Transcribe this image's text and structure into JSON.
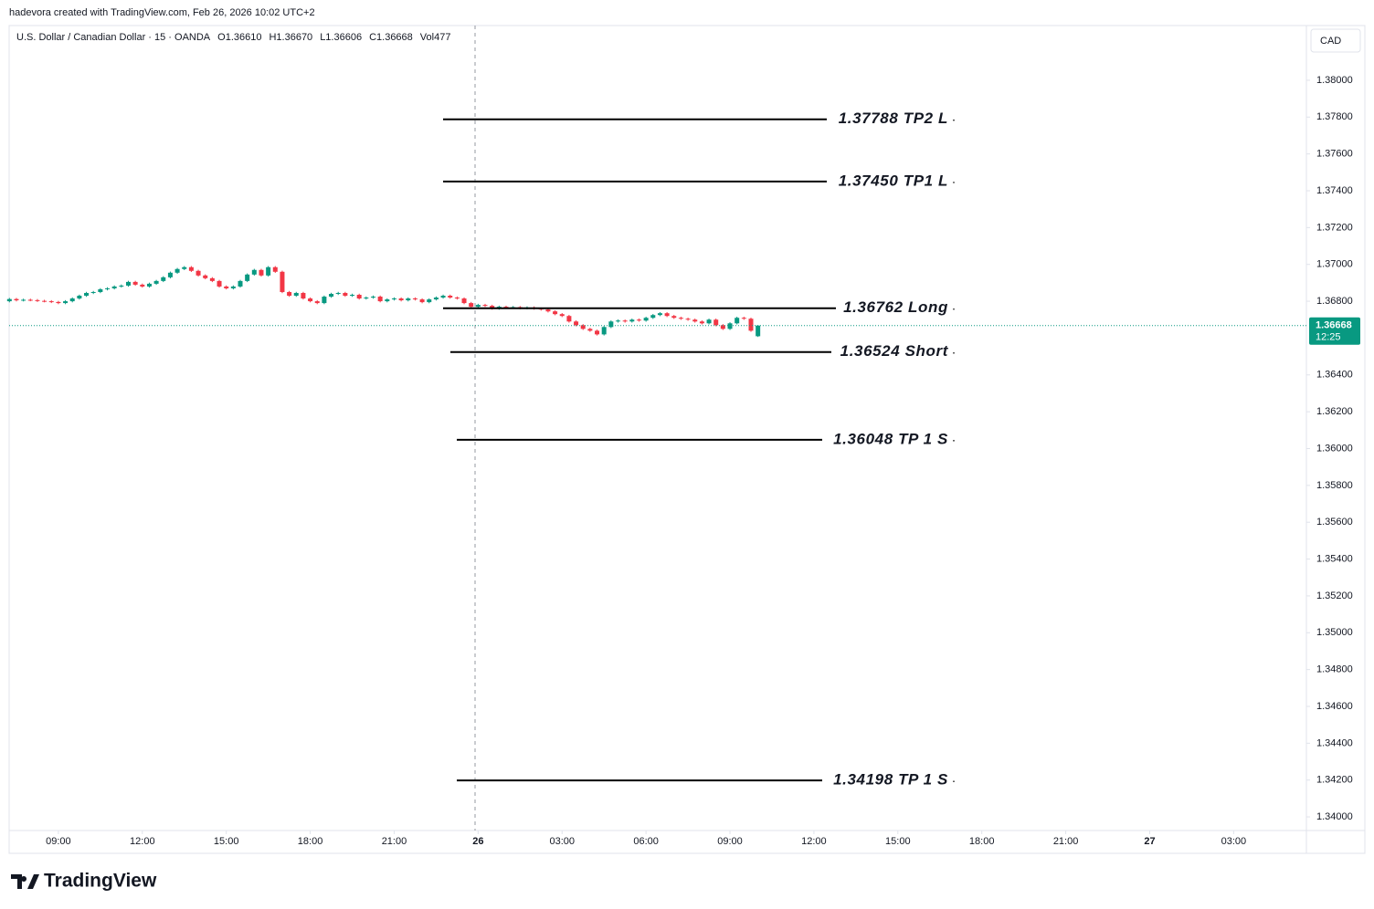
{
  "attribution": "hadevora created with TradingView.com, Feb 26, 2026 10:02 UTC+2",
  "logo": "TradingView",
  "chart_data": {
    "type": "candlestick",
    "title": "U.S. Dollar / Canadian Dollar · 15 · OANDA",
    "legend_values": [
      "O1.36610",
      "H1.36670",
      "L1.36606",
      "C1.36668",
      "Vol477"
    ],
    "currency": "CAD",
    "price_label": "1.36668",
    "countdown": "12:25",
    "up_color": "#089981",
    "down_color": "#f23645",
    "x": [
      7.25,
      7.5,
      7.75,
      8,
      8.25,
      8.5,
      8.75,
      9,
      9.25,
      9.5,
      9.75,
      10,
      10.25,
      10.5,
      10.75,
      11,
      11.25,
      11.5,
      11.75,
      12,
      12.25,
      12.5,
      12.75,
      13,
      13.25,
      13.5,
      13.75,
      14,
      14.25,
      14.5,
      14.75,
      15,
      15.25,
      15.5,
      15.75,
      16,
      16.25,
      16.5,
      16.75,
      17,
      17.25,
      17.5,
      17.75,
      18,
      18.25,
      18.5,
      18.75,
      19,
      19.25,
      19.5,
      19.75,
      20,
      20.25,
      20.5,
      20.75,
      21,
      21.25,
      21.5,
      21.75,
      22,
      22.25,
      22.5,
      22.75,
      23,
      23.25,
      23.5,
      23.75,
      24,
      24.25,
      24.5,
      24.75,
      25,
      25.25,
      25.5,
      25.75,
      26,
      26.25,
      26.5,
      26.75,
      27,
      27.25,
      27.5,
      27.75,
      28,
      28.25,
      28.5,
      28.75,
      29,
      29.25,
      29.5,
      29.75,
      30,
      30.25,
      30.5,
      30.75,
      31,
      31.25,
      31.5,
      31.75,
      32,
      32.25,
      32.5,
      32.75,
      33,
      33.25,
      33.5,
      33.75,
      34
    ],
    "open": [
      1.368,
      1.36812,
      1.36805,
      1.36808,
      1.36806,
      1.36802,
      1.368,
      1.36796,
      1.3679,
      1.368,
      1.36815,
      1.3683,
      1.36845,
      1.3685,
      1.36865,
      1.3687,
      1.3688,
      1.36885,
      1.36905,
      1.3689,
      1.3688,
      1.36895,
      1.3691,
      1.3693,
      1.36955,
      1.36975,
      1.36985,
      1.36965,
      1.3694,
      1.36925,
      1.3691,
      1.3688,
      1.3687,
      1.3688,
      1.3691,
      1.36945,
      1.3697,
      1.3694,
      1.36985,
      1.3696,
      1.3685,
      1.3683,
      1.36845,
      1.36815,
      1.368,
      1.3679,
      1.36825,
      1.3684,
      1.36845,
      1.3683,
      1.36835,
      1.36815,
      1.3682,
      1.36825,
      1.368,
      1.3681,
      1.36815,
      1.36805,
      1.36815,
      1.3681,
      1.36795,
      1.3681,
      1.3682,
      1.3683,
      1.3682,
      1.36815,
      1.3679,
      1.3677,
      1.3678,
      1.36775,
      1.3676,
      1.3677,
      1.36765,
      1.36768,
      1.36762,
      1.36766,
      1.3676,
      1.36755,
      1.36745,
      1.3673,
      1.3672,
      1.3669,
      1.3667,
      1.3665,
      1.3664,
      1.3662,
      1.3666,
      1.3669,
      1.36695,
      1.3669,
      1.367,
      1.36695,
      1.3671,
      1.36725,
      1.36735,
      1.3672,
      1.3671,
      1.36705,
      1.367,
      1.3669,
      1.3668,
      1.367,
      1.3667,
      1.3665,
      1.3668,
      1.3671,
      1.36705,
      1.3661
    ],
    "high": [
      1.36818,
      1.36818,
      1.36814,
      1.36814,
      1.36812,
      1.36808,
      1.36806,
      1.36802,
      1.36806,
      1.36821,
      1.36836,
      1.36851,
      1.36856,
      1.36871,
      1.36876,
      1.36886,
      1.36891,
      1.36911,
      1.36911,
      1.36896,
      1.36901,
      1.36916,
      1.36936,
      1.36961,
      1.36981,
      1.36991,
      1.36991,
      1.36971,
      1.36946,
      1.36931,
      1.36916,
      1.36886,
      1.36886,
      1.36916,
      1.36951,
      1.36976,
      1.36976,
      1.36991,
      1.36991,
      1.36966,
      1.36856,
      1.36851,
      1.36851,
      1.36821,
      1.36806,
      1.36831,
      1.36846,
      1.36851,
      1.36851,
      1.36841,
      1.36841,
      1.36826,
      1.36831,
      1.36831,
      1.36816,
      1.36821,
      1.36821,
      1.36821,
      1.36821,
      1.36816,
      1.36816,
      1.36826,
      1.36836,
      1.36836,
      1.36826,
      1.36821,
      1.36796,
      1.36786,
      1.36786,
      1.36781,
      1.36776,
      1.36776,
      1.36774,
      1.36774,
      1.36772,
      1.36772,
      1.36766,
      1.36761,
      1.36751,
      1.36736,
      1.36726,
      1.36696,
      1.36676,
      1.36656,
      1.36646,
      1.36666,
      1.36696,
      1.36701,
      1.36701,
      1.36706,
      1.36706,
      1.36716,
      1.36731,
      1.36741,
      1.36741,
      1.36726,
      1.36716,
      1.36711,
      1.36706,
      1.36696,
      1.36706,
      1.36706,
      1.36676,
      1.36686,
      1.36716,
      1.36716,
      1.36711,
      1.3667
    ],
    "low": [
      1.36794,
      1.36799,
      1.36799,
      1.368,
      1.36796,
      1.36794,
      1.3679,
      1.36784,
      1.36784,
      1.36794,
      1.36809,
      1.36824,
      1.36839,
      1.36844,
      1.36859,
      1.36864,
      1.36874,
      1.36879,
      1.36884,
      1.36874,
      1.36874,
      1.36889,
      1.36904,
      1.36924,
      1.36949,
      1.36969,
      1.36959,
      1.36934,
      1.36919,
      1.36904,
      1.36874,
      1.36864,
      1.36864,
      1.36874,
      1.36904,
      1.36939,
      1.36934,
      1.36934,
      1.36954,
      1.36844,
      1.36824,
      1.36824,
      1.36809,
      1.36794,
      1.36784,
      1.36784,
      1.36819,
      1.36834,
      1.36824,
      1.36824,
      1.36809,
      1.36809,
      1.36814,
      1.36794,
      1.36794,
      1.36804,
      1.36799,
      1.36799,
      1.36804,
      1.36789,
      1.36789,
      1.36804,
      1.36814,
      1.36814,
      1.36809,
      1.36784,
      1.36764,
      1.36764,
      1.36769,
      1.36754,
      1.36754,
      1.36759,
      1.36759,
      1.36756,
      1.36756,
      1.36754,
      1.36749,
      1.36739,
      1.36724,
      1.36714,
      1.36684,
      1.36664,
      1.36644,
      1.36634,
      1.36614,
      1.36614,
      1.36654,
      1.36684,
      1.36684,
      1.36684,
      1.36689,
      1.36689,
      1.36704,
      1.36719,
      1.36714,
      1.36704,
      1.36699,
      1.36694,
      1.36684,
      1.36674,
      1.36674,
      1.36664,
      1.36644,
      1.36644,
      1.36674,
      1.36699,
      1.36634,
      1.36606
    ],
    "close": [
      1.36812,
      1.36805,
      1.36808,
      1.36806,
      1.36802,
      1.368,
      1.36796,
      1.3679,
      1.368,
      1.36815,
      1.3683,
      1.36845,
      1.3685,
      1.36865,
      1.3687,
      1.3688,
      1.36885,
      1.36905,
      1.3689,
      1.3688,
      1.36895,
      1.3691,
      1.3693,
      1.36955,
      1.36975,
      1.36985,
      1.36965,
      1.3694,
      1.36925,
      1.3691,
      1.3688,
      1.3687,
      1.3688,
      1.3691,
      1.36945,
      1.3697,
      1.3694,
      1.36985,
      1.3696,
      1.3685,
      1.3683,
      1.36845,
      1.36815,
      1.368,
      1.3679,
      1.36825,
      1.3684,
      1.36845,
      1.3683,
      1.36835,
      1.36815,
      1.3682,
      1.36825,
      1.368,
      1.3681,
      1.36815,
      1.36805,
      1.36815,
      1.3681,
      1.36795,
      1.3681,
      1.3682,
      1.3683,
      1.3682,
      1.36815,
      1.3679,
      1.3677,
      1.3678,
      1.36775,
      1.3676,
      1.3677,
      1.36765,
      1.36768,
      1.36762,
      1.36766,
      1.3676,
      1.36755,
      1.36745,
      1.3673,
      1.3672,
      1.3669,
      1.3667,
      1.3665,
      1.3664,
      1.3662,
      1.3666,
      1.3669,
      1.36695,
      1.3669,
      1.367,
      1.36695,
      1.3671,
      1.36725,
      1.36735,
      1.3672,
      1.3671,
      1.36705,
      1.367,
      1.3669,
      1.3668,
      1.367,
      1.3667,
      1.3665,
      1.3668,
      1.3671,
      1.36705,
      1.3664,
      1.36668
    ],
    "levels": [
      {
        "value": 1.37788,
        "label": "1.37788 TP2 L"
      },
      {
        "value": 1.3745,
        "label": "1.37450 TP1 L"
      },
      {
        "value": 1.36762,
        "label": "1.36762 Long"
      },
      {
        "value": 1.36524,
        "label": "1.36524 Short"
      },
      {
        "value": 1.36048,
        "label": "1.36048 TP 1 S"
      },
      {
        "value": 1.34198,
        "label": "1.34198 TP 1 S"
      }
    ],
    "xlim": [
      7.24,
      53.6
    ],
    "ylim": [
      1.33926,
      1.38297
    ],
    "xticks": [
      {
        "value": 9,
        "label": "09:00"
      },
      {
        "value": 12,
        "label": "12:00"
      },
      {
        "value": 15,
        "label": "15:00"
      },
      {
        "value": 18,
        "label": "18:00"
      },
      {
        "value": 21,
        "label": "21:00"
      },
      {
        "value": 24,
        "label": "26"
      },
      {
        "value": 27,
        "label": "03:00"
      },
      {
        "value": 30,
        "label": "06:00"
      },
      {
        "value": 33,
        "label": "09:00"
      },
      {
        "value": 36,
        "label": "12:00"
      },
      {
        "value": 39,
        "label": "15:00"
      },
      {
        "value": 42,
        "label": "18:00"
      },
      {
        "value": 45,
        "label": "21:00"
      },
      {
        "value": 48,
        "label": "27"
      },
      {
        "value": 51,
        "label": "03:00"
      }
    ],
    "yticks": [
      {
        "value": 1.38,
        "label": "1.38000"
      },
      {
        "value": 1.378,
        "label": "1.37800"
      },
      {
        "value": 1.376,
        "label": "1.37600"
      },
      {
        "value": 1.374,
        "label": "1.37400"
      },
      {
        "value": 1.372,
        "label": "1.37200"
      },
      {
        "value": 1.37,
        "label": "1.37000"
      },
      {
        "value": 1.368,
        "label": "1.36800"
      },
      {
        "value": 1.364,
        "label": "1.36400"
      },
      {
        "value": 1.362,
        "label": "1.36200"
      },
      {
        "value": 1.36,
        "label": "1.36000"
      },
      {
        "value": 1.358,
        "label": "1.35800"
      },
      {
        "value": 1.356,
        "label": "1.35600"
      },
      {
        "value": 1.354,
        "label": "1.35400"
      },
      {
        "value": 1.352,
        "label": "1.35200"
      },
      {
        "value": 1.35,
        "label": "1.35000"
      },
      {
        "value": 1.348,
        "label": "1.34800"
      },
      {
        "value": 1.346,
        "label": "1.34600"
      },
      {
        "value": 1.344,
        "label": "1.34400"
      },
      {
        "value": 1.342,
        "label": "1.34200"
      },
      {
        "value": 1.34,
        "label": "1.34000"
      }
    ]
  }
}
